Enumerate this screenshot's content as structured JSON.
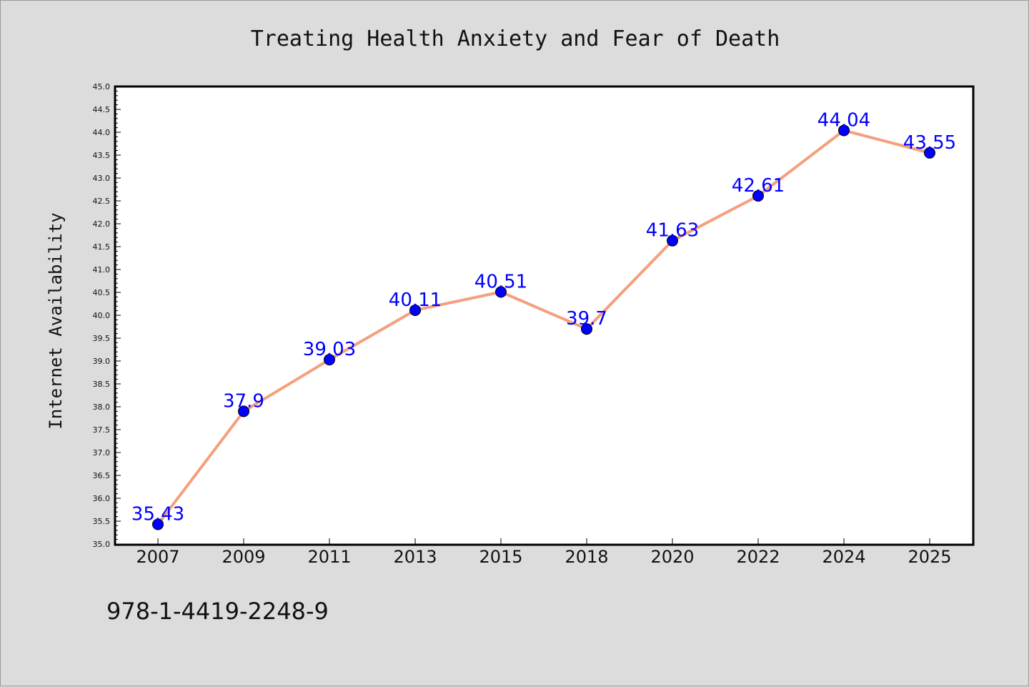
{
  "isbn": "978-1-4419-2248-9",
  "colors": {
    "background": "#dcdcdc",
    "plot_area": "#ffffff",
    "line": "#f4a07e",
    "marker": "#0000ff",
    "label": "#0000ff"
  },
  "chart_data": {
    "type": "line",
    "title": "Treating Health Anxiety and Fear of Death",
    "xlabel": "",
    "ylabel": "Internet Availability",
    "categories": [
      "2007",
      "2009",
      "2011",
      "2013",
      "2015",
      "2018",
      "2020",
      "2022",
      "2024",
      "2025"
    ],
    "series": [
      {
        "values": [
          35.43,
          37.9,
          39.03,
          40.11,
          40.51,
          39.7,
          41.63,
          42.61,
          44.04,
          43.55
        ]
      }
    ],
    "data_labels": [
      "35.43",
      "37.9",
      "39.03",
      "40.11",
      "40.51",
      "39.7",
      "41.63",
      "42.61",
      "44.04",
      "43.55"
    ],
    "ylim": [
      35.0,
      45.0
    ],
    "yticks": [
      "35.0",
      "35.5",
      "36.0",
      "36.5",
      "37.0",
      "37.5",
      "38.0",
      "38.5",
      "39.0",
      "39.5",
      "40.0",
      "40.5",
      "41.0",
      "41.5",
      "42.0",
      "42.5",
      "43.0",
      "43.5",
      "44.0",
      "44.5",
      "45.0"
    ],
    "grid": false,
    "legend": "none"
  }
}
